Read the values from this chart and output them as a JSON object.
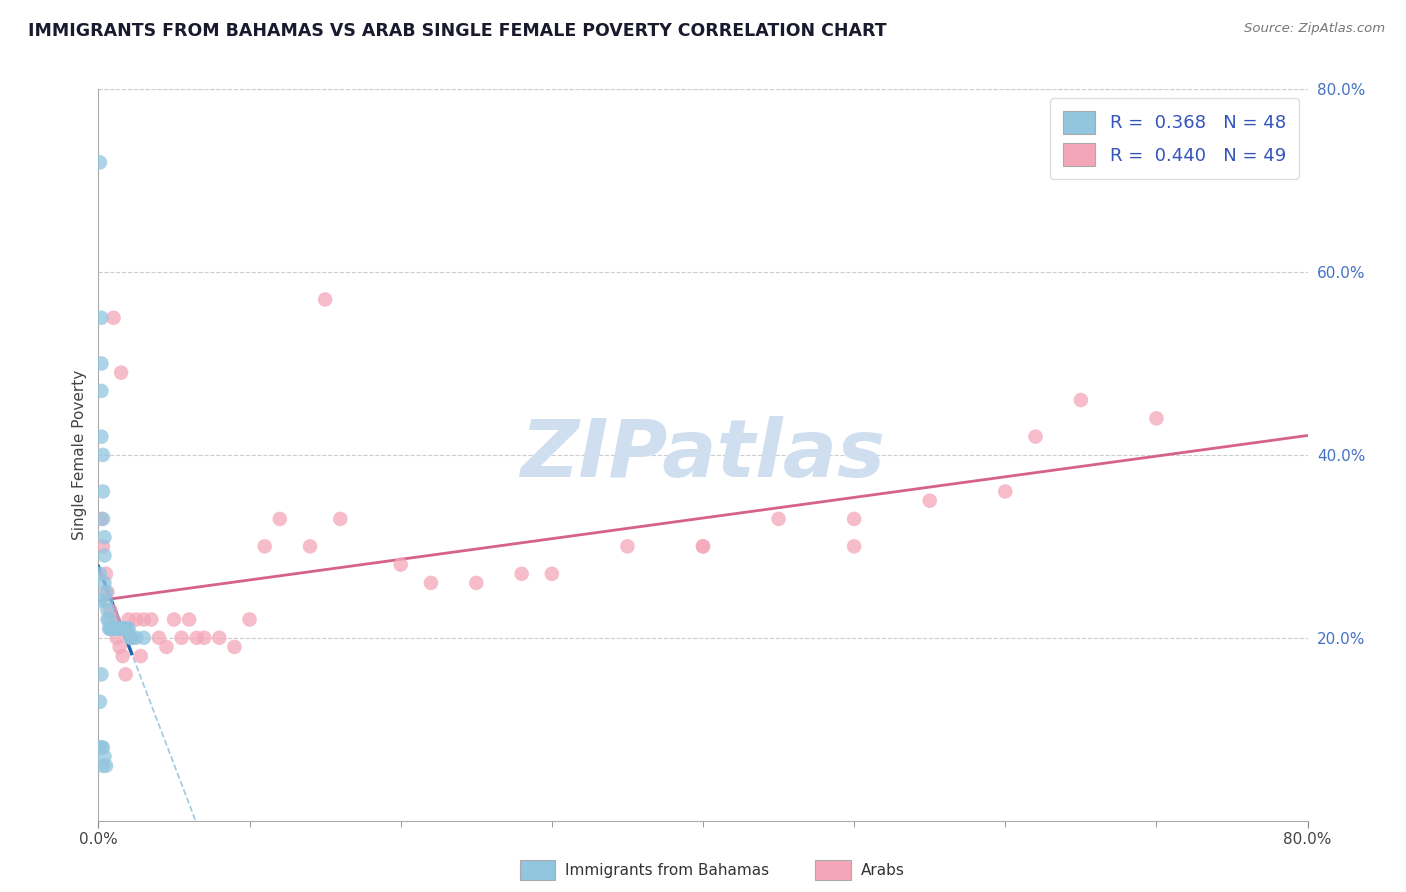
{
  "title": "IMMIGRANTS FROM BAHAMAS VS ARAB SINGLE FEMALE POVERTY CORRELATION CHART",
  "source": "Source: ZipAtlas.com",
  "ylabel": "Single Female Poverty",
  "legend_label1": "Immigrants from Bahamas",
  "legend_label2": "Arabs",
  "blue_color": "#92c5de",
  "pink_color": "#f4a6b8",
  "blue_line_color": "#2166ac",
  "pink_line_color": "#d6618a",
  "blue_dash_color": "#92c5de",
  "watermark": "ZIPatlas",
  "watermark_color": "#d0dff0",
  "xlim": [
    0.0,
    0.8
  ],
  "ylim": [
    0.0,
    0.8
  ],
  "right_yticks": [
    0.2,
    0.4,
    0.6,
    0.8
  ],
  "right_ytick_labels": [
    "20.0%",
    "40.0%",
    "60.0%",
    "80.0%"
  ],
  "blue_scatter_x": [
    0.001,
    0.001,
    0.001,
    0.002,
    0.002,
    0.002,
    0.002,
    0.003,
    0.003,
    0.003,
    0.004,
    0.004,
    0.004,
    0.005,
    0.005,
    0.006,
    0.006,
    0.007,
    0.007,
    0.008,
    0.008,
    0.009,
    0.009,
    0.01,
    0.01,
    0.011,
    0.011,
    0.012,
    0.013,
    0.014,
    0.015,
    0.016,
    0.017,
    0.018,
    0.019,
    0.02,
    0.021,
    0.022,
    0.025,
    0.03,
    0.001,
    0.001,
    0.002,
    0.002,
    0.003,
    0.003,
    0.004,
    0.005
  ],
  "blue_scatter_y": [
    0.72,
    0.27,
    0.24,
    0.55,
    0.5,
    0.47,
    0.42,
    0.4,
    0.36,
    0.33,
    0.31,
    0.29,
    0.26,
    0.25,
    0.24,
    0.23,
    0.22,
    0.22,
    0.21,
    0.21,
    0.21,
    0.21,
    0.21,
    0.21,
    0.21,
    0.21,
    0.21,
    0.21,
    0.21,
    0.21,
    0.21,
    0.21,
    0.21,
    0.21,
    0.21,
    0.21,
    0.2,
    0.2,
    0.2,
    0.2,
    0.13,
    0.08,
    0.16,
    0.08,
    0.06,
    0.08,
    0.07,
    0.06
  ],
  "pink_scatter_x": [
    0.002,
    0.003,
    0.005,
    0.006,
    0.008,
    0.01,
    0.012,
    0.014,
    0.015,
    0.016,
    0.018,
    0.02,
    0.022,
    0.025,
    0.028,
    0.03,
    0.035,
    0.04,
    0.045,
    0.05,
    0.055,
    0.06,
    0.065,
    0.07,
    0.08,
    0.09,
    0.1,
    0.11,
    0.12,
    0.14,
    0.15,
    0.16,
    0.2,
    0.22,
    0.25,
    0.28,
    0.3,
    0.35,
    0.4,
    0.4,
    0.45,
    0.5,
    0.5,
    0.55,
    0.6,
    0.62,
    0.65,
    0.7,
    0.01
  ],
  "pink_scatter_y": [
    0.33,
    0.3,
    0.27,
    0.25,
    0.23,
    0.22,
    0.2,
    0.19,
    0.49,
    0.18,
    0.16,
    0.22,
    0.2,
    0.22,
    0.18,
    0.22,
    0.22,
    0.2,
    0.19,
    0.22,
    0.2,
    0.22,
    0.2,
    0.2,
    0.2,
    0.19,
    0.22,
    0.3,
    0.33,
    0.3,
    0.57,
    0.33,
    0.28,
    0.26,
    0.26,
    0.27,
    0.27,
    0.3,
    0.3,
    0.3,
    0.33,
    0.33,
    0.3,
    0.35,
    0.36,
    0.42,
    0.46,
    0.44,
    0.55
  ]
}
